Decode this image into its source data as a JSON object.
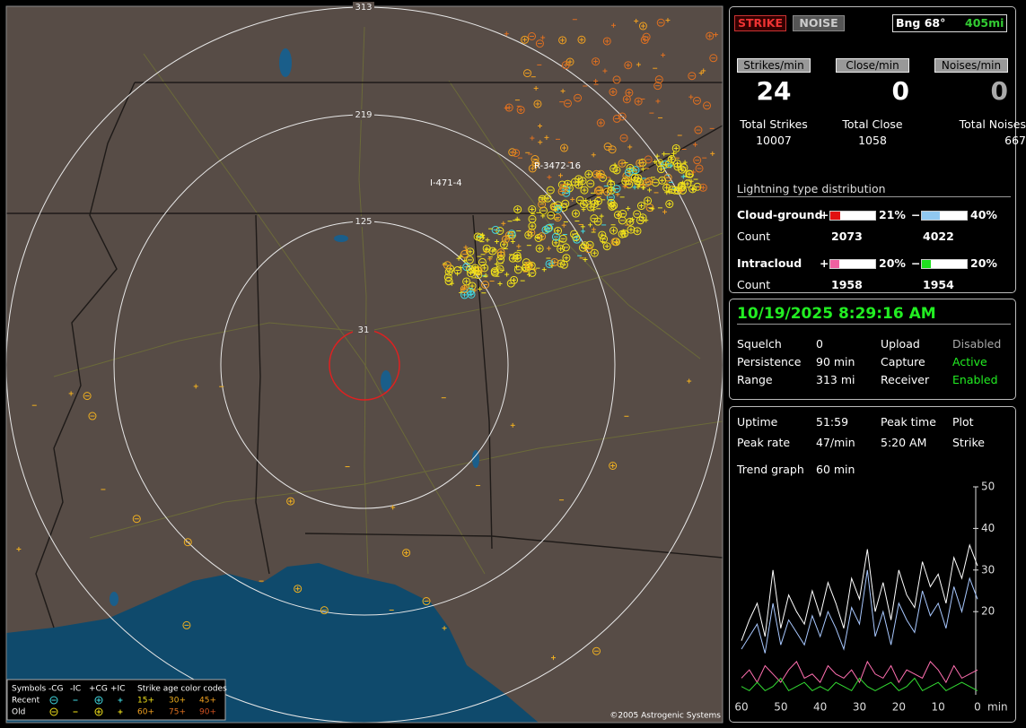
{
  "map": {
    "range_labels": [
      "313",
      "219",
      "125",
      "31"
    ],
    "strike_labels": [
      "R-3472-16",
      "I-471-4"
    ],
    "copyright": "©2005 Astrogenic Systems",
    "legend": {
      "symbols": "Symbols",
      "types": [
        "-CG",
        "-IC",
        "+CG",
        "+IC"
      ],
      "age_title": "Strike age color codes",
      "rows": [
        {
          "label": "Recent",
          "ages": [
            "15+",
            "30+",
            "45+"
          ]
        },
        {
          "label": "Old",
          "ages": [
            "60+",
            "75+",
            "90+"
          ]
        }
      ]
    }
  },
  "panel": {
    "strike_button": "STRIKE",
    "noise_button": "NOISE",
    "bearing": "Bng 68°",
    "bearing_distance": "405mi",
    "rates": [
      {
        "label": "Strikes/min",
        "value": "24"
      },
      {
        "label": "Close/min",
        "value": "0"
      },
      {
        "label": "Noises/min",
        "value": "0"
      }
    ],
    "totals": [
      {
        "label": "Total Strikes",
        "value": "10007"
      },
      {
        "label": "Total Close",
        "value": "1058"
      },
      {
        "label": "Total Noises",
        "value": "667"
      }
    ],
    "distribution": {
      "title": "Lightning type distribution",
      "rows": [
        {
          "label": "Cloud-ground",
          "plus": "+",
          "plus_pct": "21%",
          "minus": "−",
          "minus_pct": "40%",
          "count_label": "Count",
          "plus_count": "2073",
          "minus_count": "4022"
        },
        {
          "label": "Intracloud",
          "plus": "+",
          "plus_pct": "20%",
          "minus": "−",
          "minus_pct": "20%",
          "count_label": "Count",
          "plus_count": "1958",
          "minus_count": "1954"
        }
      ]
    }
  },
  "status": {
    "datetime": "10/19/2025 8:29:16 AM",
    "rows": [
      [
        "Squelch",
        "0",
        "Upload",
        "Disabled"
      ],
      [
        "Persistence",
        "90 min",
        "Capture",
        "Active"
      ],
      [
        "Range",
        "313 mi",
        "Receiver",
        "Enabled"
      ]
    ]
  },
  "stats": {
    "rows": [
      [
        "Uptime",
        "51:59",
        "Peak time",
        "Plot"
      ],
      [
        "Peak rate",
        "47/min",
        "5:20 AM",
        "Strike"
      ]
    ],
    "trend_label": "Trend graph",
    "trend_span": "60 min"
  },
  "chart_data": {
    "type": "line",
    "x_label": "min",
    "x": [
      60,
      58,
      56,
      54,
      52,
      50,
      48,
      46,
      44,
      42,
      40,
      38,
      36,
      34,
      32,
      30,
      28,
      26,
      24,
      22,
      20,
      18,
      16,
      14,
      12,
      10,
      8,
      6,
      4,
      2,
      0
    ],
    "xlim": [
      60,
      0
    ],
    "xticks": [
      60,
      50,
      40,
      30,
      20,
      10,
      0
    ],
    "ylim": [
      0,
      50
    ],
    "yticks": [
      20,
      30,
      40,
      50
    ],
    "series": [
      {
        "color": "#ffffff",
        "values": [
          13,
          18,
          22,
          14,
          30,
          16,
          24,
          20,
          17,
          25,
          19,
          27,
          22,
          16,
          28,
          23,
          35,
          20,
          27,
          18,
          30,
          24,
          21,
          32,
          26,
          29,
          22,
          33,
          28,
          36,
          31
        ]
      },
      {
        "color": "#a8c8ff",
        "values": [
          11,
          14,
          17,
          10,
          22,
          12,
          18,
          15,
          12,
          19,
          14,
          20,
          16,
          11,
          21,
          17,
          30,
          14,
          20,
          12,
          22,
          18,
          15,
          25,
          19,
          22,
          16,
          26,
          20,
          28,
          23
        ]
      },
      {
        "color": "#ff6fb0",
        "values": [
          4,
          6,
          3,
          7,
          5,
          3,
          6,
          8,
          4,
          5,
          3,
          7,
          5,
          4,
          6,
          3,
          8,
          5,
          4,
          7,
          3,
          6,
          5,
          4,
          8,
          6,
          3,
          7,
          4,
          5,
          6
        ]
      },
      {
        "color": "#33dd33",
        "values": [
          2,
          1,
          3,
          1,
          2,
          4,
          1,
          2,
          3,
          1,
          2,
          1,
          3,
          2,
          1,
          4,
          2,
          1,
          2,
          3,
          1,
          2,
          4,
          1,
          2,
          3,
          1,
          2,
          3,
          2,
          1
        ]
      }
    ]
  }
}
